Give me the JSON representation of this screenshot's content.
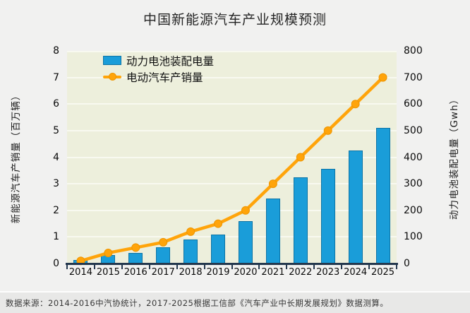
{
  "title": "中国新能源汽车产业规模预测",
  "chart_data": {
    "type": "bar+line",
    "categories": [
      "2014",
      "2015",
      "2016",
      "2017",
      "2018",
      "2019",
      "2020",
      "2021",
      "2022",
      "2023",
      "2024",
      "2025"
    ],
    "series": [
      {
        "name": "动力电池装配电量",
        "type": "bar",
        "axis": "right",
        "unit": "Gwh",
        "color": "#1a9dd9",
        "values": [
          13,
          32,
          40,
          62,
          90,
          110,
          160,
          245,
          325,
          355,
          425,
          510
        ]
      },
      {
        "name": "电动汽车产销量",
        "type": "line",
        "axis": "left",
        "unit": "百万辆",
        "color": "#ffa40a",
        "values": [
          0.1,
          0.4,
          0.6,
          0.8,
          1.2,
          1.5,
          2.0,
          3.0,
          4.0,
          5.0,
          6.0,
          7.0
        ]
      }
    ],
    "left_axis": {
      "label": "新能源汽车产销量（百万辆）",
      "min": 0,
      "max": 8,
      "step": 1
    },
    "right_axis": {
      "label": "动力电池装配电量（Gwh）",
      "min": 0,
      "max": 800,
      "step": 100
    },
    "grid": true,
    "legend_position": "top-left"
  },
  "source_note": "数据来源：2014-2016中汽协统计，2017-2025根据工信部《汽车产业中长期发展规划》数据测算。",
  "colors": {
    "bar_fill": "#1a9dd9",
    "bar_border": "#0c74a6",
    "line": "#ffa40a",
    "plot_background": "#edefdc",
    "gridline": "#f8f9f0",
    "axis": "#24384e",
    "page_background": "#f1f1f0"
  }
}
